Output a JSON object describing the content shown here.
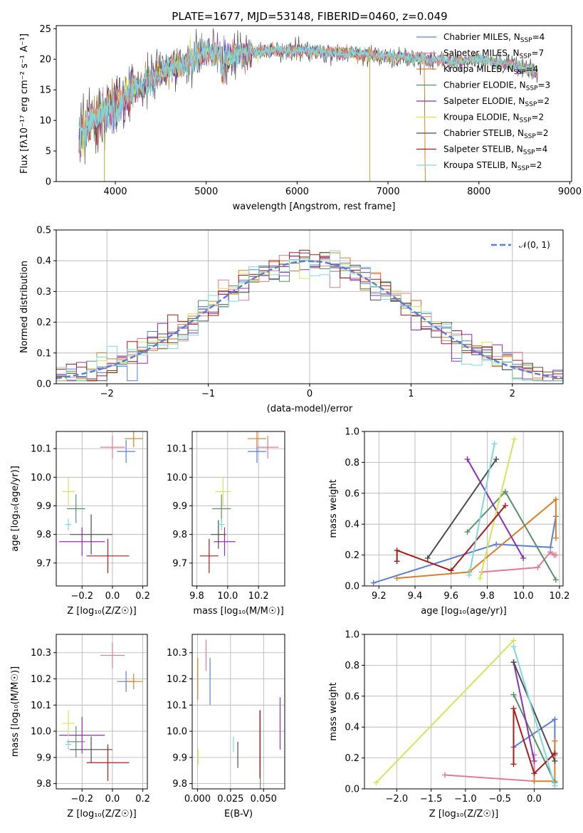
{
  "chart_data": [
    {
      "id": "spectrum",
      "type": "line",
      "title": "PLATE=1677, MJD=53148, FIBERID=0460, z=0.049",
      "xlabel": "wavelength [Angstrom, rest frame]",
      "ylabel": "Flux [fλ10⁻¹⁷ erg cm⁻² s⁻¹ A⁻¹]",
      "xlim": [
        3350,
        9020
      ],
      "ylim": [
        0,
        25.5
      ],
      "xticks": [
        4000,
        5000,
        6000,
        7000,
        8000,
        9000
      ],
      "yticks": [
        0,
        5,
        10,
        15,
        20,
        25
      ],
      "grid": false,
      "legend_position": "top-right",
      "series": [
        {
          "name": "Chabrier MILES, N_SSP=4",
          "color": "#5a7fd6"
        },
        {
          "name": "Salpeter MILES, N_SSP=7",
          "color": "#e07b91"
        },
        {
          "name": "Kroupa MILES, N_SSP=4",
          "color": "#d97f27"
        },
        {
          "name": "Chabrier ELODIE, N_SSP=3",
          "color": "#5a8f6a"
        },
        {
          "name": "Salpeter ELODIE, N_SSP=2",
          "color": "#8e2fb5"
        },
        {
          "name": "Kroupa ELODIE, N_SSP=2",
          "color": "#d6e45a"
        },
        {
          "name": "Chabrier STELIB, N_SSP=2",
          "color": "#4d4d4d"
        },
        {
          "name": "Salpeter STELIB, N_SSP=4",
          "color": "#a81c1c"
        },
        {
          "name": "Kroupa STELIB, N_SSP=2",
          "color": "#7fd8dc"
        }
      ],
      "legend": [
        {
          "base": "Chabrier MILES, N",
          "sub": "SSP",
          "tail": "=4"
        },
        {
          "base": "Salpeter MILES, N",
          "sub": "SSP",
          "tail": "=7"
        },
        {
          "base": "Kroupa MILES, N",
          "sub": "SSP",
          "tail": "=4"
        },
        {
          "base": "Chabrier ELODIE, N",
          "sub": "SSP",
          "tail": "=3"
        },
        {
          "base": "Salpeter ELODIE, N",
          "sub": "SSP",
          "tail": "=2"
        },
        {
          "base": "Kroupa ELODIE, N",
          "sub": "SSP",
          "tail": "=2"
        },
        {
          "base": "Chabrier STELIB, N",
          "sub": "SSP",
          "tail": "=2"
        },
        {
          "base": "Salpeter STELIB, N",
          "sub": "SSP",
          "tail": "=4"
        },
        {
          "base": "Kroupa STELIB, N",
          "sub": "SSP",
          "tail": "=2"
        }
      ],
      "continuum": {
        "x": [
          3600,
          3800,
          4000,
          4200,
          4400,
          4600,
          4800,
          5000,
          5200,
          5500,
          6000,
          6500,
          7000,
          7500,
          7800,
          8000,
          8200,
          8400,
          8700
        ],
        "y": [
          7.5,
          10.5,
          12.5,
          15.0,
          17.0,
          18.5,
          19.5,
          21.0,
          20.5,
          21.2,
          21.5,
          21.0,
          20.5,
          20.0,
          19.5,
          20.2,
          19.5,
          19.0,
          17.5
        ]
      }
    },
    {
      "id": "residuals",
      "type": "histogram",
      "xlabel": "(data-model)/error",
      "ylabel": "Normed distribution",
      "xlim": [
        -2.5,
        2.5
      ],
      "ylim": [
        0,
        0.5
      ],
      "xticks": [
        -2,
        -1,
        0,
        1,
        2
      ],
      "yticks": [
        0.0,
        0.1,
        0.2,
        0.3,
        0.4,
        0.5
      ],
      "grid": true,
      "legend_position": "top-right",
      "legend": [
        {
          "name": "𝒩(0, 1)",
          "color": "#5a7fd6",
          "style": "dashed"
        }
      ]
    },
    {
      "id": "age-vs-Z",
      "type": "scatter",
      "xlabel": "Z [log₁₀(Z/Z☉)]",
      "ylabel": "age  [log₁₀(age/yr)]",
      "xlim": [
        -0.37,
        0.23
      ],
      "ylim": [
        9.62,
        10.16
      ],
      "xticks": [
        -0.2,
        0.0,
        0.2
      ],
      "xticklabels": [
        "−0.2",
        "0.0",
        "0.2"
      ],
      "yticks": [
        9.7,
        9.8,
        9.9,
        10.0,
        10.1
      ],
      "grid": true,
      "points": [
        {
          "x": 0.09,
          "y": 10.09,
          "xerr": 0.06,
          "yerr": 0.04,
          "color": "#5a7fd6"
        },
        {
          "x": 0.0,
          "y": 10.105,
          "xerr": 0.08,
          "yerr": 0.04,
          "color": "#e07b91"
        },
        {
          "x": 0.14,
          "y": 10.135,
          "xerr": 0.06,
          "yerr": 0.03,
          "color": "#d97f27"
        },
        {
          "x": -0.24,
          "y": 9.89,
          "xerr": 0.06,
          "yerr": 0.05,
          "color": "#5a8f6a"
        },
        {
          "x": -0.2,
          "y": 9.775,
          "xerr": 0.15,
          "yerr": 0.05,
          "color": "#8e2fb5"
        },
        {
          "x": -0.29,
          "y": 9.95,
          "xerr": 0.04,
          "yerr": 0.05,
          "color": "#d6e45a"
        },
        {
          "x": -0.14,
          "y": 9.8,
          "xerr": 0.14,
          "yerr": 0.07,
          "color": "#4d4d4d"
        },
        {
          "x": -0.03,
          "y": 9.725,
          "xerr": 0.14,
          "yerr": 0.06,
          "color": "#a81c1c"
        },
        {
          "x": -0.29,
          "y": 9.835,
          "xerr": 0.02,
          "yerr": 0.02,
          "color": "#7fd8dc"
        }
      ]
    },
    {
      "id": "age-vs-mass",
      "type": "scatter",
      "xlabel": "mass [log₁₀(M/M☉)]",
      "ylabel": "",
      "xlim": [
        9.77,
        10.37
      ],
      "ylim": [
        9.62,
        10.16
      ],
      "xticks": [
        9.8,
        10.0,
        10.2
      ],
      "yticks": [
        9.7,
        9.8,
        9.9,
        10.0,
        10.1
      ],
      "grid": true,
      "points": [
        {
          "x": 10.19,
          "y": 10.09,
          "xerr": 0.06,
          "yerr": 0.04,
          "color": "#5a7fd6"
        },
        {
          "x": 10.26,
          "y": 10.105,
          "xerr": 0.07,
          "yerr": 0.04,
          "color": "#e07b91"
        },
        {
          "x": 10.19,
          "y": 10.135,
          "xerr": 0.06,
          "yerr": 0.03,
          "color": "#d97f27"
        },
        {
          "x": 9.96,
          "y": 9.89,
          "xerr": 0.06,
          "yerr": 0.05,
          "color": "#5a8f6a"
        },
        {
          "x": 9.98,
          "y": 9.775,
          "xerr": 0.07,
          "yerr": 0.05,
          "color": "#8e2fb5"
        },
        {
          "x": 9.97,
          "y": 9.95,
          "xerr": 0.05,
          "yerr": 0.05,
          "color": "#d6e45a"
        },
        {
          "x": 9.94,
          "y": 9.8,
          "xerr": 0.05,
          "yerr": 0.05,
          "color": "#4d4d4d"
        },
        {
          "x": 9.88,
          "y": 9.725,
          "xerr": 0.06,
          "yerr": 0.06,
          "color": "#a81c1c"
        },
        {
          "x": 9.96,
          "y": 9.835,
          "xerr": 0.02,
          "yerr": 0.02,
          "color": "#7fd8dc"
        }
      ]
    },
    {
      "id": "weight-vs-age",
      "type": "line",
      "xlabel": "age  [log₁₀(age/yr)]",
      "ylabel": "mass weight",
      "xlim": [
        9.12,
        10.22
      ],
      "ylim": [
        0.0,
        1.0
      ],
      "xticks": [
        9.2,
        9.4,
        9.6,
        9.8,
        10.0,
        10.2
      ],
      "yticks": [
        0.0,
        0.2,
        0.4,
        0.6,
        0.8,
        1.0
      ],
      "grid": true,
      "series": [
        {
          "name": "",
          "color": "#5a7fd6",
          "x": [
            9.17,
            9.85,
            10.15,
            10.18
          ],
          "y": [
            0.02,
            0.27,
            0.25,
            0.45
          ]
        },
        {
          "name": "",
          "color": "#e07b91",
          "x": [
            9.77,
            10.08,
            10.15,
            10.17,
            10.18
          ],
          "y": [
            0.09,
            0.12,
            0.22,
            0.2,
            0.2
          ]
        },
        {
          "name": "",
          "color": "#d97f27",
          "x": [
            9.3,
            9.7,
            10.18,
            10.18
          ],
          "y": [
            0.05,
            0.09,
            0.56,
            0.31
          ]
        },
        {
          "name": "",
          "color": "#5a8f6a",
          "x": [
            9.69,
            9.9,
            10.18
          ],
          "y": [
            0.35,
            0.61,
            0.04
          ]
        },
        {
          "name": "",
          "color": "#8e2fb5",
          "x": [
            9.69,
            10.0
          ],
          "y": [
            0.82,
            0.18
          ]
        },
        {
          "name": "",
          "color": "#d6e45a",
          "x": [
            9.76,
            9.95
          ],
          "y": [
            0.05,
            0.95
          ]
        },
        {
          "name": "",
          "color": "#4d4d4d",
          "x": [
            9.47,
            9.85
          ],
          "y": [
            0.18,
            0.82
          ]
        },
        {
          "name": "",
          "color": "#a81c1c",
          "x": [
            9.3,
            9.3,
            9.6,
            9.9
          ],
          "y": [
            0.16,
            0.23,
            0.1,
            0.52
          ]
        },
        {
          "name": "",
          "color": "#7fd8dc",
          "x": [
            9.7,
            9.84
          ],
          "y": [
            0.07,
            0.92
          ]
        }
      ]
    },
    {
      "id": "mass-vs-Z",
      "type": "scatter",
      "xlabel": "Z [log₁₀(Z/Z☉)]",
      "ylabel": "mass [log₁₀(M/M☉)]",
      "xlim": [
        -0.37,
        0.23
      ],
      "ylim": [
        9.78,
        10.37
      ],
      "xticks": [
        -0.2,
        0.0,
        0.2
      ],
      "xticklabels": [
        "−0.2",
        "0.0",
        "0.2"
      ],
      "yticks": [
        9.8,
        9.9,
        10.0,
        10.1,
        10.2,
        10.3
      ],
      "grid": true,
      "points": [
        {
          "x": 0.09,
          "y": 10.19,
          "xerr": 0.06,
          "yerr": 0.04,
          "color": "#5a7fd6"
        },
        {
          "x": 0.0,
          "y": 10.29,
          "xerr": 0.08,
          "yerr": 0.05,
          "color": "#e07b91"
        },
        {
          "x": 0.14,
          "y": 10.19,
          "xerr": 0.06,
          "yerr": 0.03,
          "color": "#d97f27"
        },
        {
          "x": -0.24,
          "y": 9.96,
          "xerr": 0.06,
          "yerr": 0.06,
          "color": "#5a8f6a"
        },
        {
          "x": -0.2,
          "y": 9.985,
          "xerr": 0.15,
          "yerr": 0.07,
          "color": "#8e2fb5"
        },
        {
          "x": -0.29,
          "y": 10.03,
          "xerr": 0.04,
          "yerr": 0.05,
          "color": "#d6e45a"
        },
        {
          "x": -0.14,
          "y": 9.93,
          "xerr": 0.14,
          "yerr": 0.05,
          "color": "#4d4d4d"
        },
        {
          "x": -0.03,
          "y": 9.88,
          "xerr": 0.14,
          "yerr": 0.07,
          "color": "#a81c1c"
        },
        {
          "x": -0.29,
          "y": 9.95,
          "xerr": 0.02,
          "yerr": 0.02,
          "color": "#7fd8dc"
        }
      ]
    },
    {
      "id": "mass-vs-EBV",
      "type": "scatter",
      "xlabel": "E(B-V)",
      "ylabel": "",
      "xlim": [
        -0.004,
        0.066
      ],
      "ylim": [
        9.78,
        10.37
      ],
      "xticks": [
        0.0,
        0.025,
        0.05
      ],
      "xticklabels": [
        "0.000",
        "0.025",
        "0.050"
      ],
      "yticks": [
        9.8,
        9.9,
        10.0,
        10.1,
        10.2,
        10.3
      ],
      "grid": true,
      "points": [
        {
          "x": 0.0095,
          "y": 10.19,
          "xerr": 0.0,
          "yerr": 0.09,
          "color": "#5a7fd6"
        },
        {
          "x": 0.0065,
          "y": 10.29,
          "xerr": 0.0,
          "yerr": 0.06,
          "color": "#e07b91"
        },
        {
          "x": 0.0002,
          "y": 10.2,
          "xerr": 0.0,
          "yerr": 0.08,
          "color": "#d97f27"
        },
        {
          "x": 0.0475,
          "y": 9.93,
          "xerr": 0.0,
          "yerr": 0.15,
          "color": "#5a8f6a"
        },
        {
          "x": 0.0625,
          "y": 10.03,
          "xerr": 0.0,
          "yerr": 0.1,
          "color": "#8e2fb5"
        },
        {
          "x": 0.0005,
          "y": 9.9,
          "xerr": 0.0,
          "yerr": 0.03,
          "color": "#d6e45a"
        },
        {
          "x": 0.0305,
          "y": 9.91,
          "xerr": 0.0,
          "yerr": 0.05,
          "color": "#4d4d4d"
        },
        {
          "x": 0.0472,
          "y": 9.95,
          "xerr": 0.0,
          "yerr": 0.13,
          "color": "#a81c1c"
        },
        {
          "x": 0.0272,
          "y": 9.95,
          "xerr": 0.0,
          "yerr": 0.03,
          "color": "#7fd8dc"
        }
      ]
    },
    {
      "id": "weight-vs-Z",
      "type": "line",
      "xlabel": "Z [log₁₀(Z/Z☉)]",
      "ylabel": "mass weight",
      "xlim": [
        -2.47,
        0.42
      ],
      "ylim": [
        0.0,
        1.0
      ],
      "xticks": [
        -2.0,
        -1.5,
        -1.0,
        -0.5,
        0.0
      ],
      "xticklabels": [
        "−2.0",
        "−1.5",
        "−1.0",
        "−0.5",
        "0.0"
      ],
      "yticks": [
        0.0,
        0.2,
        0.4,
        0.6,
        0.8,
        1.0
      ],
      "grid": true,
      "series": [
        {
          "name": "",
          "color": "#5a7fd6",
          "x": [
            -0.3,
            0.3,
            0.3
          ],
          "y": [
            0.27,
            0.45,
            0.22
          ]
        },
        {
          "name": "",
          "color": "#e07b91",
          "x": [
            -1.3,
            0.0,
            0.0
          ],
          "y": [
            0.09,
            0.05,
            0.22
          ]
        },
        {
          "name": "",
          "color": "#d97f27",
          "x": [
            0.3,
            0.3,
            0.0
          ],
          "y": [
            0.31,
            0.05,
            0.05
          ]
        },
        {
          "name": "",
          "color": "#5a8f6a",
          "x": [
            -0.3,
            0.3
          ],
          "y": [
            0.61,
            0.04
          ]
        },
        {
          "name": "",
          "color": "#8e2fb5",
          "x": [
            -0.3,
            0.0
          ],
          "y": [
            0.82,
            0.18
          ]
        },
        {
          "name": "",
          "color": "#d6e45a",
          "x": [
            -2.3,
            -0.3
          ],
          "y": [
            0.04,
            0.96
          ]
        },
        {
          "name": "",
          "color": "#4d4d4d",
          "x": [
            -0.3,
            0.3
          ],
          "y": [
            0.82,
            0.18
          ]
        },
        {
          "name": "",
          "color": "#a81c1c",
          "x": [
            -0.3,
            -0.3,
            0.0,
            0.3
          ],
          "y": [
            0.16,
            0.52,
            0.1,
            0.23
          ]
        },
        {
          "name": "",
          "color": "#7fd8dc",
          "x": [
            -0.3,
            0.3
          ],
          "y": [
            0.92,
            0.02
          ]
        }
      ]
    }
  ]
}
